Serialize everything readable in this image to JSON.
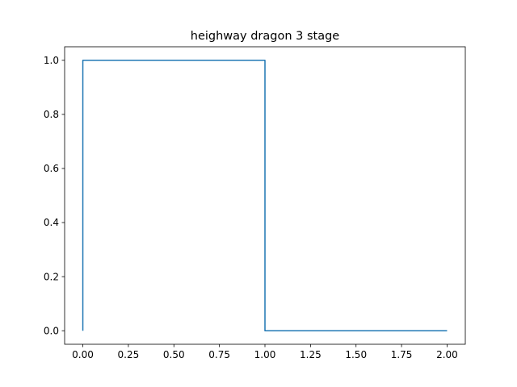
{
  "chart_data": {
    "type": "line",
    "title": "heighway dragon 3 stage",
    "xlabel": "",
    "ylabel": "",
    "xlim": [
      -0.1,
      2.1
    ],
    "ylim": [
      -0.05,
      1.05
    ],
    "grid": false,
    "x_ticks": [
      0.0,
      0.25,
      0.5,
      0.75,
      1.0,
      1.25,
      1.5,
      1.75,
      2.0
    ],
    "x_tick_labels": [
      "0.00",
      "0.25",
      "0.50",
      "0.75",
      "1.00",
      "1.25",
      "1.50",
      "1.75",
      "2.00"
    ],
    "y_ticks": [
      0.0,
      0.2,
      0.4,
      0.6,
      0.8,
      1.0
    ],
    "y_tick_labels": [
      "0.0",
      "0.2",
      "0.4",
      "0.6",
      "0.8",
      "1.0"
    ],
    "series": [
      {
        "color": "#1f77b4",
        "x": [
          0,
          0,
          1,
          1,
          2
        ],
        "y": [
          0,
          1,
          1,
          0,
          0
        ]
      }
    ]
  }
}
